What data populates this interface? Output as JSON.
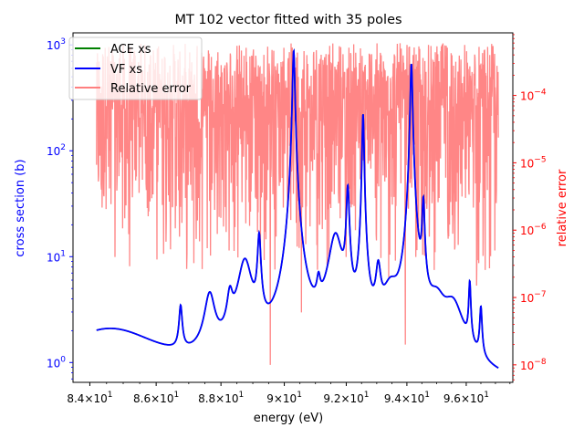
{
  "chart_data": {
    "type": "line",
    "title": "MT 102 vector fitted with 35 poles",
    "xlabel": "energy (eV)",
    "ylabel_left": "cross section (b)",
    "ylabel_right": "relative error",
    "x_scale": "log",
    "y_left_scale": "log",
    "y_right_scale": "log",
    "xlim": [
      83.5,
      97.6
    ],
    "ylim_left": [
      0.65,
      1300
    ],
    "ylim_right": [
      5.5e-09,
      0.00085
    ],
    "x_ticks": [
      84,
      86,
      88,
      90,
      92,
      94,
      96
    ],
    "x_tick_labels": [
      {
        "base": "8.4×10",
        "exp": "1"
      },
      {
        "base": "8.6×10",
        "exp": "1"
      },
      {
        "base": "8.8×10",
        "exp": "1"
      },
      {
        "base": "9×10",
        "exp": "1"
      },
      {
        "base": "9.2×10",
        "exp": "1"
      },
      {
        "base": "9.4×10",
        "exp": "1"
      },
      {
        "base": "9.6×10",
        "exp": "1"
      }
    ],
    "y_left_ticks": [
      1,
      10,
      100,
      1000
    ],
    "y_left_tick_labels": [
      {
        "base": "10",
        "exp": "0"
      },
      {
        "base": "10",
        "exp": "1"
      },
      {
        "base": "10",
        "exp": "2"
      },
      {
        "base": "10",
        "exp": "3"
      }
    ],
    "y_right_ticks": [
      1e-08,
      1e-07,
      1e-06,
      1e-05,
      0.0001
    ],
    "y_right_tick_labels": [
      {
        "base": "10",
        "exp": "−8"
      },
      {
        "base": "10",
        "exp": "−7"
      },
      {
        "base": "10",
        "exp": "−6"
      },
      {
        "base": "10",
        "exp": "−5"
      },
      {
        "base": "10",
        "exp": "−4"
      }
    ],
    "legend": {
      "position": "upper-left",
      "entries": [
        {
          "label": "ACE xs",
          "color": "#008000"
        },
        {
          "label": "VF xs",
          "color": "#0000ff"
        },
        {
          "label": "Relative error",
          "color": "#ff7f7f"
        }
      ]
    },
    "series": [
      {
        "name": "ACE xs",
        "axis": "left",
        "color": "#008000",
        "baseline": 0.5,
        "resonances": [
          [
            84.35,
            1.55,
            0.95
          ],
          [
            84.95,
            1.55,
            0.6
          ],
          [
            86.75,
            0.05,
            2.1
          ],
          [
            87.65,
            0.16,
            3.2
          ],
          [
            88.28,
            0.09,
            2.5
          ],
          [
            88.75,
            0.22,
            8.0
          ],
          [
            89.2,
            0.05,
            13.5
          ],
          [
            90.3,
            0.035,
            880
          ],
          [
            91.65,
            0.22,
            14.5
          ],
          [
            91.1,
            0.06,
            2.5
          ],
          [
            92.05,
            0.045,
            42
          ],
          [
            92.55,
            0.03,
            220
          ],
          [
            93.05,
            0.08,
            5.5
          ],
          [
            93.45,
            0.28,
            3.2
          ],
          [
            94.15,
            0.035,
            660
          ],
          [
            94.55,
            0.04,
            30
          ],
          [
            95.0,
            0.3,
            2.3
          ],
          [
            95.55,
            0.35,
            2.4
          ],
          [
            96.12,
            0.035,
            4.2
          ],
          [
            96.5,
            0.04,
            2.2
          ]
        ],
        "x_range": [
          84.2,
          97.1
        ]
      },
      {
        "name": "VF xs",
        "axis": "left",
        "color": "#0000ff",
        "baseline": 0.5,
        "resonances": [
          [
            84.35,
            1.55,
            0.95
          ],
          [
            84.95,
            1.55,
            0.6
          ],
          [
            86.75,
            0.05,
            2.1
          ],
          [
            87.65,
            0.16,
            3.2
          ],
          [
            88.28,
            0.09,
            2.5
          ],
          [
            88.75,
            0.22,
            8.0
          ],
          [
            89.2,
            0.05,
            13.5
          ],
          [
            90.3,
            0.035,
            880
          ],
          [
            91.65,
            0.22,
            14.5
          ],
          [
            91.1,
            0.06,
            2.5
          ],
          [
            92.05,
            0.045,
            42
          ],
          [
            92.55,
            0.03,
            220
          ],
          [
            93.05,
            0.08,
            5.5
          ],
          [
            93.45,
            0.28,
            3.2
          ],
          [
            94.15,
            0.035,
            660
          ],
          [
            94.55,
            0.04,
            30
          ],
          [
            95.0,
            0.3,
            2.3
          ],
          [
            95.55,
            0.35,
            2.4
          ],
          [
            96.12,
            0.035,
            4.2
          ],
          [
            96.5,
            0.04,
            2.2
          ]
        ],
        "x_range": [
          84.2,
          97.1
        ]
      },
      {
        "name": "Relative error",
        "axis": "right",
        "color": "#ff7f7f",
        "x_range": [
          84.2,
          97.1
        ],
        "upper_band": [
          3e-05,
          0.0006
        ],
        "deep_dips": [
          [
            84.35,
            4e-06
          ],
          [
            84.75,
            4e-07
          ],
          [
            85.05,
            1.5e-06
          ],
          [
            86.72,
            8e-07
          ],
          [
            86.9,
            3e-06
          ],
          [
            87.3,
            3e-06
          ],
          [
            88.25,
            5e-07
          ],
          [
            89.55,
            1e-08
          ],
          [
            90.55,
            6e-08
          ],
          [
            91.05,
            6e-07
          ],
          [
            91.8,
            1.5e-06
          ],
          [
            92.3,
            1e-06
          ],
          [
            92.95,
            3e-06
          ],
          [
            93.4,
            2e-07
          ],
          [
            93.95,
            2e-08
          ],
          [
            94.3,
            4e-07
          ],
          [
            94.75,
            8e-07
          ],
          [
            95.3,
            6e-06
          ],
          [
            95.8,
            8e-06
          ],
          [
            96.35,
            1.5e-07
          ],
          [
            96.6,
            3e-06
          ],
          [
            96.95,
            3e-05
          ]
        ]
      }
    ]
  }
}
